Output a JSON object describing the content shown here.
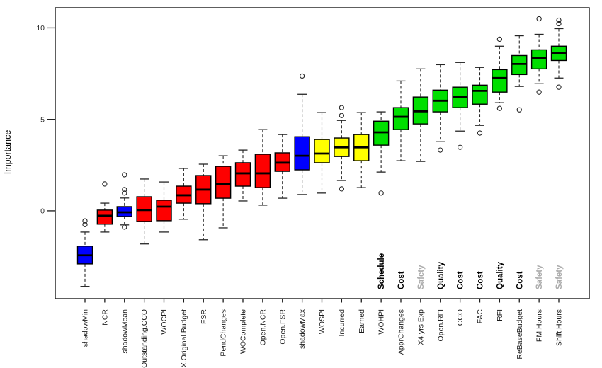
{
  "chart_data": {
    "type": "boxplot",
    "title": "",
    "ylabel": "Importance",
    "y_ticks": [
      0,
      5,
      10
    ],
    "y_range": [
      -4.8,
      11.1
    ],
    "grid": false,
    "palette": {
      "red": "#FE0000",
      "blue": "#0000FF",
      "yellow": "#FFFF00",
      "green": "#00DF00"
    },
    "axis_color": "#1a1a1a",
    "whisker_color": "#262626",
    "text_color": "#1c1c1c",
    "kpi_black": "#000000",
    "kpi_gray": "#ABABAB",
    "boxes": [
      {
        "label": "shadowMin",
        "color": "blue",
        "q1": -2.9,
        "median": -2.43,
        "q3": -1.93,
        "whisker_low": -4.13,
        "whisker_high": -1.16,
        "outliers": [
          -0.55,
          -0.75
        ],
        "kpi_label": null
      },
      {
        "label": "NCR",
        "color": "red",
        "q1": -0.73,
        "median": -0.27,
        "q3": 0.04,
        "whisker_low": -1.16,
        "whisker_high": 0.42,
        "outliers": [
          1.47
        ],
        "kpi_label": null
      },
      {
        "label": "shadowMean",
        "color": "blue",
        "q1": -0.31,
        "median": -0.08,
        "q3": 0.23,
        "whisker_low": -0.77,
        "whisker_high": 0.7,
        "outliers": [
          1.97,
          1.16,
          0.97,
          -0.89
        ],
        "kpi_label": null
      },
      {
        "label": "Outstanding.CCO",
        "color": "red",
        "q1": -0.58,
        "median": 0.04,
        "q3": 0.77,
        "whisker_low": -1.81,
        "whisker_high": 1.74,
        "outliers": [],
        "kpi_label": null
      },
      {
        "label": "WOCPI",
        "color": "red",
        "q1": -0.54,
        "median": 0.23,
        "q3": 0.58,
        "whisker_low": -1.16,
        "whisker_high": 1.58,
        "outliers": [],
        "kpi_label": null
      },
      {
        "label": "X.Original.Budget",
        "color": "red",
        "q1": 0.42,
        "median": 0.85,
        "q3": 1.35,
        "whisker_low": -0.46,
        "whisker_high": 2.32,
        "outliers": [],
        "kpi_label": null
      },
      {
        "label": "FSR",
        "color": "red",
        "q1": 0.39,
        "median": 1.16,
        "q3": 1.93,
        "whisker_low": -1.58,
        "whisker_high": 2.55,
        "outliers": [],
        "kpi_label": null
      },
      {
        "label": "PendChanges",
        "color": "red",
        "q1": 0.69,
        "median": 1.47,
        "q3": 2.43,
        "whisker_low": -0.93,
        "whisker_high": 3.01,
        "outliers": [],
        "kpi_label": null
      },
      {
        "label": "WOComplete",
        "color": "red",
        "q1": 1.35,
        "median": 2.05,
        "q3": 2.63,
        "whisker_low": 0.54,
        "whisker_high": 3.32,
        "outliers": [],
        "kpi_label": null
      },
      {
        "label": "Open.NCR",
        "color": "red",
        "q1": 1.27,
        "median": 2.05,
        "q3": 3.09,
        "whisker_low": 0.31,
        "whisker_high": 4.44,
        "outliers": [],
        "kpi_label": null
      },
      {
        "label": "Open.FSR",
        "color": "red",
        "q1": 2.16,
        "median": 2.63,
        "q3": 3.17,
        "whisker_low": 0.69,
        "whisker_high": 4.17,
        "outliers": [],
        "kpi_label": null
      },
      {
        "label": "shadowMax",
        "color": "blue",
        "q1": 2.24,
        "median": 3.01,
        "q3": 4.05,
        "whisker_low": 0.89,
        "whisker_high": 6.37,
        "outliers": [
          7.37
        ],
        "kpi_label": null
      },
      {
        "label": "WOSPI",
        "color": "yellow",
        "q1": 2.63,
        "median": 3.13,
        "q3": 3.9,
        "whisker_low": 0.97,
        "whisker_high": 5.37,
        "outliers": [],
        "kpi_label": null
      },
      {
        "label": "Incurred",
        "color": "yellow",
        "q1": 2.97,
        "median": 3.47,
        "q3": 3.98,
        "whisker_low": 1.66,
        "whisker_high": 4.94,
        "outliers": [
          5.64,
          5.21,
          1.2
        ],
        "kpi_label": null
      },
      {
        "label": "Earned",
        "color": "yellow",
        "q1": 2.74,
        "median": 3.47,
        "q3": 4.17,
        "whisker_low": 1.27,
        "whisker_high": 5.37,
        "outliers": [],
        "kpi_label": null
      },
      {
        "label": "WOHPI",
        "color": "green",
        "q1": 3.59,
        "median": 4.29,
        "q3": 4.9,
        "whisker_low": 2.12,
        "whisker_high": 5.41,
        "outliers": [
          0.97
        ],
        "kpi_label": "Schedule",
        "kpi_gray": false
      },
      {
        "label": "ApprChanges",
        "color": "green",
        "q1": 4.44,
        "median": 5.14,
        "q3": 5.64,
        "whisker_low": 2.74,
        "whisker_high": 7.1,
        "outliers": [],
        "kpi_label": "Cost",
        "kpi_gray": false
      },
      {
        "label": "X4.yrs.Exp",
        "color": "green",
        "q1": 4.75,
        "median": 5.44,
        "q3": 6.22,
        "whisker_low": 2.7,
        "whisker_high": 7.76,
        "outliers": [],
        "kpi_label": "Safety",
        "kpi_gray": true
      },
      {
        "label": "Open.RFI",
        "color": "green",
        "q1": 5.41,
        "median": 6.02,
        "q3": 6.6,
        "whisker_low": 3.78,
        "whisker_high": 7.99,
        "outliers": [
          3.32
        ],
        "kpi_label": "Quality",
        "kpi_gray": false
      },
      {
        "label": "CCO",
        "color": "green",
        "q1": 5.64,
        "median": 6.22,
        "q3": 6.76,
        "whisker_low": 4.36,
        "whisker_high": 8.11,
        "outliers": [
          3.47
        ],
        "kpi_label": "Cost",
        "kpi_gray": false
      },
      {
        "label": "FAC",
        "color": "green",
        "q1": 5.83,
        "median": 6.56,
        "q3": 6.87,
        "whisker_low": 4.67,
        "whisker_high": 7.84,
        "outliers": [
          4.25
        ],
        "kpi_label": "Cost",
        "kpi_gray": false
      },
      {
        "label": "RFI",
        "color": "green",
        "q1": 6.49,
        "median": 7.26,
        "q3": 7.72,
        "whisker_low": 5.91,
        "whisker_high": 9.0,
        "outliers": [
          9.38,
          5.6
        ],
        "kpi_label": "Quality",
        "kpi_gray": false
      },
      {
        "label": "ReBaseBudget",
        "color": "green",
        "q1": 7.45,
        "median": 8.03,
        "q3": 8.49,
        "whisker_low": 6.8,
        "whisker_high": 9.57,
        "outliers": [
          5.52
        ],
        "kpi_label": "Cost",
        "kpi_gray": false
      },
      {
        "label": "FM.Hours",
        "color": "green",
        "q1": 7.76,
        "median": 8.34,
        "q3": 8.8,
        "whisker_low": 6.95,
        "whisker_high": 9.65,
        "outliers": [
          10.5,
          6.49
        ],
        "kpi_label": "Safety",
        "kpi_gray": true
      },
      {
        "label": "Shift.Hours",
        "color": "green",
        "q1": 8.22,
        "median": 8.61,
        "q3": 9.0,
        "whisker_low": 7.26,
        "whisker_high": 9.96,
        "outliers": [
          10.42,
          10.23,
          6.76
        ],
        "kpi_label": "Safety",
        "kpi_gray": true
      }
    ]
  }
}
